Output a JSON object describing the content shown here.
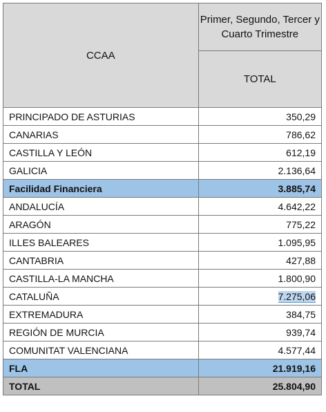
{
  "header": {
    "ccaa_label": "CCAA",
    "period_label": "Primer, Segundo, Tercer y Cuarto Trimestre",
    "total_label": "TOTAL"
  },
  "rows": [
    {
      "name": "PRINCIPADO DE ASTURIAS",
      "value": "350,29",
      "style": "normal"
    },
    {
      "name": "CANARIAS",
      "value": "786,62",
      "style": "normal"
    },
    {
      "name": "CASTILLA Y LEÓN",
      "value": "612,19",
      "style": "normal"
    },
    {
      "name": "GALICIA",
      "value": "2.136,64",
      "style": "normal"
    },
    {
      "name": "Facilidad Financiera",
      "value": "3.885,74",
      "style": "blue"
    },
    {
      "name": "ANDALUCÍA",
      "value": "4.642,22",
      "style": "normal"
    },
    {
      "name": "ARAGÓN",
      "value": "775,22",
      "style": "normal"
    },
    {
      "name": "ILLES BALEARES",
      "value": "1.095,95",
      "style": "normal"
    },
    {
      "name": "CANTABRIA",
      "value": "427,88",
      "style": "normal"
    },
    {
      "name": "CASTILLA-LA MANCHA",
      "value": "1.800,90",
      "style": "normal"
    },
    {
      "name": "CATALUÑA",
      "value": "7.275,06",
      "style": "normal",
      "highlight": true
    },
    {
      "name": "EXTREMADURA",
      "value": "384,75",
      "style": "normal"
    },
    {
      "name": "REGIÓN DE MURCIA",
      "value": "939,74",
      "style": "normal"
    },
    {
      "name": "COMUNITAT VALENCIANA",
      "value": "4.577,44",
      "style": "normal"
    },
    {
      "name": "FLA",
      "value": "21.919,16",
      "style": "blue"
    },
    {
      "name": "TOTAL",
      "value": "25.804,90",
      "style": "gray"
    }
  ]
}
